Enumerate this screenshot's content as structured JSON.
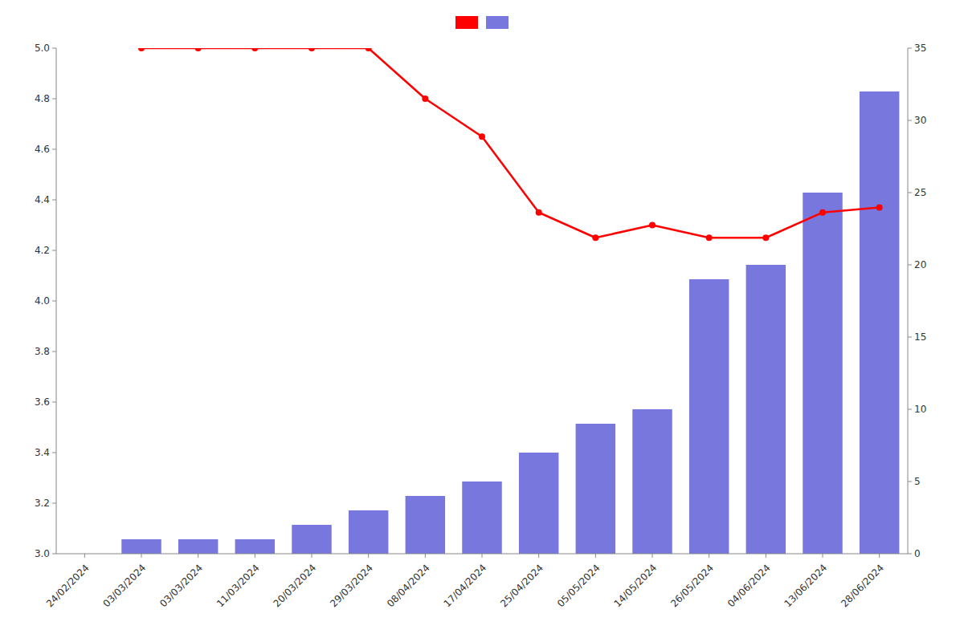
{
  "chart_data": {
    "type": "combo",
    "categories": [
      "24/02/2024",
      "03/03/2024",
      "03/03/2024",
      "11/03/2024",
      "20/03/2024",
      "29/03/2024",
      "08/04/2024",
      "17/04/2024",
      "25/04/2024",
      "05/05/2024",
      "14/05/2024",
      "26/05/2024",
      "04/06/2024",
      "13/06/2024",
      "28/06/2024"
    ],
    "series": [
      {
        "type": "bar",
        "axis": "y2",
        "color": "#7777dd",
        "values": [
          0,
          1,
          1,
          1,
          2,
          3,
          4,
          5,
          7,
          9,
          10,
          19,
          20,
          25,
          32
        ]
      },
      {
        "type": "line",
        "color": "#ff0000",
        "marker": "circle",
        "values": [
          null,
          5.0,
          5.0,
          5.0,
          5.0,
          5.0,
          4.8,
          4.65,
          4.35,
          4.25,
          4.3,
          4.25,
          4.25,
          4.35,
          4.37
        ]
      }
    ],
    "ylim": [
      3.0,
      5.0
    ],
    "yticks": [
      {
        "value": 3.0,
        "label": "3.0"
      },
      3.2,
      3.4,
      3.6,
      3.8,
      {
        "value": 4.0,
        "label": "4.0"
      },
      4.2,
      4.4,
      4.6,
      4.8,
      {
        "value": 5.0,
        "label": "5.0"
      }
    ],
    "y2lim": [
      0,
      35
    ],
    "y2ticks": [
      0,
      5,
      10,
      15,
      20,
      25,
      30,
      35
    ],
    "grid": false,
    "legend": "top"
  }
}
